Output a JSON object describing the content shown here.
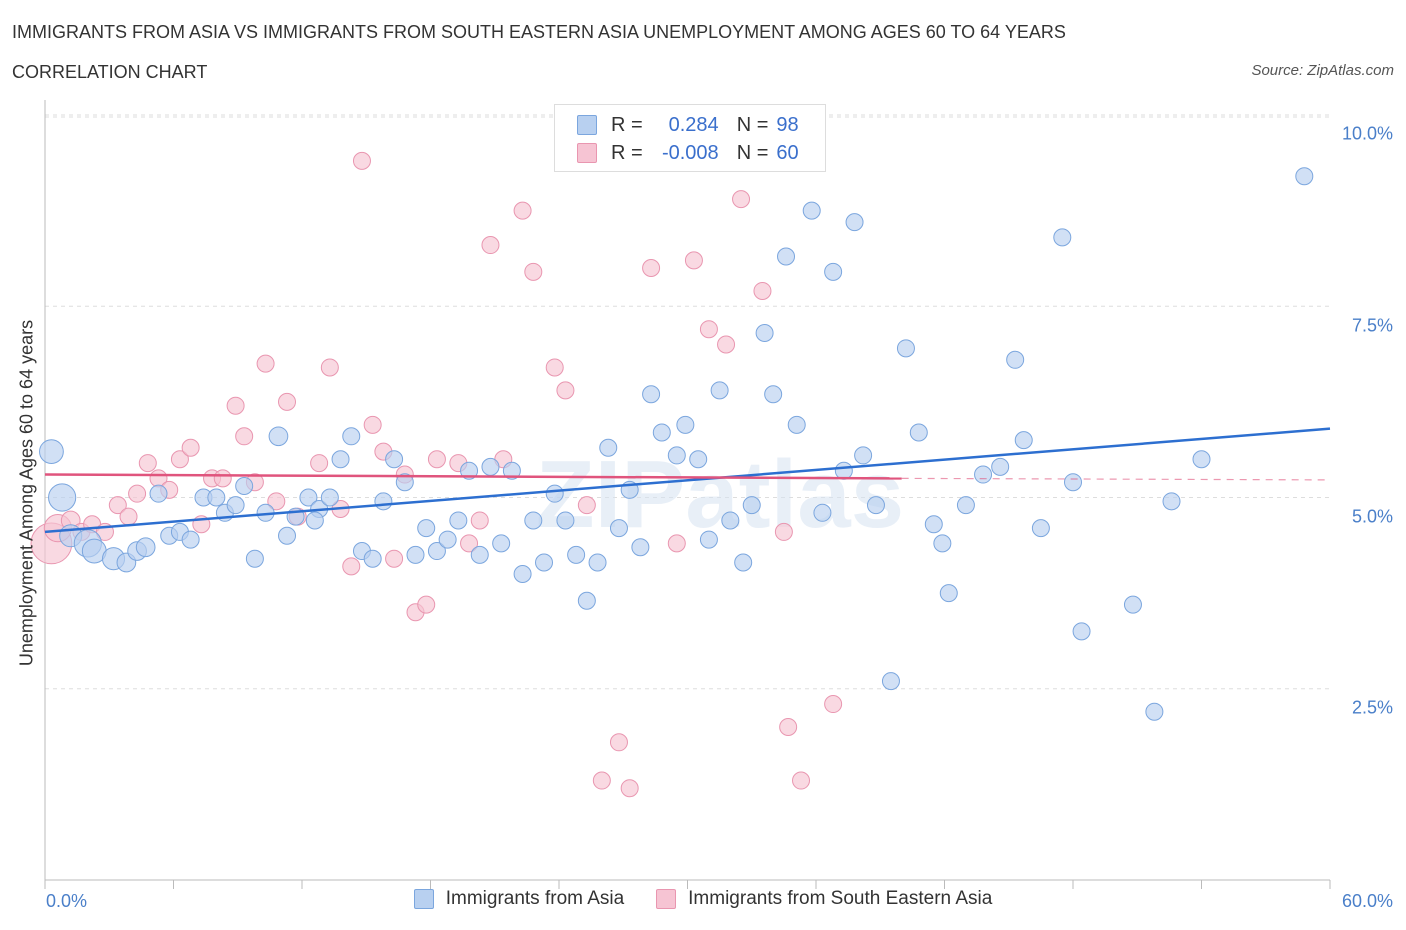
{
  "title": "IMMIGRANTS FROM ASIA VS IMMIGRANTS FROM SOUTH EASTERN ASIA UNEMPLOYMENT AMONG AGES 60 TO 64 YEARS",
  "subtitle": "CORRELATION CHART",
  "source": "Source: ZipAtlas.com",
  "watermark": "ZIPatlas",
  "colors": {
    "blue_fill": "#b8d0f0",
    "blue_stroke": "#7ba6de",
    "blue_line": "#2d6fd0",
    "pink_fill": "#f6c4d3",
    "pink_stroke": "#e996b0",
    "pink_line": "#e0547d",
    "tick_text": "#4a7fc9",
    "grid": "#dddddd"
  },
  "legend": {
    "r_label": "R =",
    "n_label": "N =",
    "blue": {
      "r": "0.284",
      "n": "98"
    },
    "pink": {
      "r": "-0.008",
      "n": "60"
    }
  },
  "chart_data": {
    "type": "scatter",
    "title": "IMMIGRANTS FROM ASIA VS IMMIGRANTS FROM SOUTH EASTERN ASIA UNEMPLOYMENT AMONG AGES 60 TO 64 YEARS",
    "xlabel": "",
    "ylabel": "Unemployment Among Ages 60 to 64 years",
    "xlim": [
      0,
      60
    ],
    "ylim": [
      0,
      10.5
    ],
    "x_tick_labels": [
      "0.0%",
      "60.0%"
    ],
    "y_ticks": [
      {
        "value": 2.5,
        "label": "2.5%"
      },
      {
        "value": 5.0,
        "label": "5.0%"
      },
      {
        "value": 7.5,
        "label": "7.5%"
      },
      {
        "value": 10.0,
        "label": "10.0%"
      }
    ],
    "series": [
      {
        "name": "Immigrants from Asia",
        "color": "blue",
        "trend": {
          "x": [
            0,
            60
          ],
          "y": [
            4.55,
            5.9
          ]
        },
        "points": [
          [
            0.3,
            5.6,
            1.4
          ],
          [
            0.8,
            5.0,
            1.6
          ],
          [
            1.2,
            4.5,
            1.3
          ],
          [
            2.0,
            4.4,
            1.6
          ],
          [
            2.3,
            4.3,
            1.4
          ],
          [
            3.2,
            4.2,
            1.3
          ],
          [
            3.8,
            4.15,
            1.1
          ],
          [
            4.3,
            4.3,
            1.1
          ],
          [
            4.7,
            4.35,
            1.1
          ],
          [
            5.3,
            5.05,
            1.0
          ],
          [
            5.8,
            4.5,
            1.0
          ],
          [
            6.3,
            4.55,
            1.0
          ],
          [
            6.8,
            4.45,
            1.0
          ],
          [
            7.4,
            5.0,
            1.0
          ],
          [
            8.0,
            5.0,
            1.0
          ],
          [
            8.4,
            4.8,
            1.0
          ],
          [
            8.9,
            4.9,
            1.0
          ],
          [
            9.3,
            5.15,
            1.0
          ],
          [
            9.8,
            4.2,
            1.0
          ],
          [
            10.3,
            4.8,
            1.0
          ],
          [
            10.9,
            5.8,
            1.1
          ],
          [
            11.3,
            4.5,
            1.0
          ],
          [
            11.7,
            4.75,
            1.0
          ],
          [
            12.3,
            5.0,
            1.0
          ],
          [
            12.8,
            4.85,
            1.0
          ],
          [
            13.3,
            5.0,
            1.0
          ],
          [
            13.8,
            5.5,
            1.0
          ],
          [
            14.3,
            5.8,
            1.0
          ],
          [
            14.8,
            4.3,
            1.0
          ],
          [
            15.3,
            4.2,
            1.0
          ],
          [
            15.8,
            4.95,
            1.0
          ],
          [
            16.3,
            5.5,
            1.0
          ],
          [
            16.8,
            5.2,
            1.0
          ],
          [
            17.3,
            4.25,
            1.0
          ],
          [
            17.8,
            4.6,
            1.0
          ],
          [
            18.3,
            4.3,
            1.0
          ],
          [
            18.8,
            4.45,
            1.0
          ],
          [
            19.3,
            4.7,
            1.0
          ],
          [
            19.8,
            5.35,
            1.0
          ],
          [
            20.3,
            4.25,
            1.0
          ],
          [
            20.8,
            5.4,
            1.0
          ],
          [
            21.3,
            4.4,
            1.0
          ],
          [
            21.8,
            5.35,
            1.0
          ],
          [
            22.3,
            4.0,
            1.0
          ],
          [
            22.8,
            4.7,
            1.0
          ],
          [
            23.3,
            4.15,
            1.0
          ],
          [
            23.8,
            5.05,
            1.0
          ],
          [
            24.3,
            4.7,
            1.0
          ],
          [
            24.8,
            4.25,
            1.0
          ],
          [
            25.3,
            3.65,
            1.0
          ],
          [
            25.8,
            4.15,
            1.0
          ],
          [
            26.3,
            5.65,
            1.0
          ],
          [
            26.8,
            4.6,
            1.0
          ],
          [
            27.3,
            5.1,
            1.0
          ],
          [
            27.8,
            4.35,
            1.0
          ],
          [
            28.3,
            6.35,
            1.0
          ],
          [
            28.8,
            5.85,
            1.0
          ],
          [
            29.5,
            5.55,
            1.0
          ],
          [
            29.9,
            5.95,
            1.0
          ],
          [
            30.5,
            5.5,
            1.0
          ],
          [
            31.0,
            4.45,
            1.0
          ],
          [
            31.5,
            6.4,
            1.0
          ],
          [
            32.0,
            4.7,
            1.0
          ],
          [
            32.6,
            4.15,
            1.0
          ],
          [
            33.0,
            4.9,
            1.0
          ],
          [
            33.6,
            7.15,
            1.0
          ],
          [
            34.0,
            6.35,
            1.0
          ],
          [
            34.6,
            8.15,
            1.0
          ],
          [
            35.1,
            5.95,
            1.0
          ],
          [
            35.8,
            8.75,
            1.0
          ],
          [
            36.3,
            4.8,
            1.0
          ],
          [
            36.8,
            7.95,
            1.0
          ],
          [
            37.3,
            5.35,
            1.0
          ],
          [
            37.8,
            8.6,
            1.0
          ],
          [
            38.2,
            5.55,
            1.0
          ],
          [
            38.8,
            4.9,
            1.0
          ],
          [
            39.5,
            2.6,
            1.0
          ],
          [
            40.2,
            6.95,
            1.0
          ],
          [
            40.8,
            5.85,
            1.0
          ],
          [
            41.5,
            4.65,
            1.0
          ],
          [
            41.9,
            4.4,
            1.0
          ],
          [
            42.2,
            3.75,
            1.0
          ],
          [
            43.0,
            4.9,
            1.0
          ],
          [
            43.8,
            5.3,
            1.0
          ],
          [
            44.6,
            5.4,
            1.0
          ],
          [
            45.3,
            6.8,
            1.0
          ],
          [
            45.7,
            5.75,
            1.0
          ],
          [
            46.5,
            4.6,
            1.0
          ],
          [
            47.5,
            8.4,
            1.0
          ],
          [
            48.0,
            5.2,
            1.0
          ],
          [
            48.4,
            3.25,
            1.0
          ],
          [
            50.8,
            3.6,
            1.0
          ],
          [
            51.8,
            2.2,
            1.0
          ],
          [
            52.6,
            4.95,
            1.0
          ],
          [
            54.0,
            5.5,
            1.0
          ],
          [
            58.8,
            9.2,
            1.0
          ],
          [
            12.6,
            4.7,
            1.0
          ]
        ]
      },
      {
        "name": "Immigrants from South Eastern Asia",
        "color": "pink",
        "trend": {
          "x": [
            0,
            40
          ],
          "y": [
            5.3,
            5.25
          ],
          "dashed_to": 60,
          "dashed_y": 5.23
        },
        "points": [
          [
            0.3,
            4.4,
            2.4
          ],
          [
            0.6,
            4.6,
            1.6
          ],
          [
            1.2,
            4.7,
            1.1
          ],
          [
            1.7,
            4.55,
            1.0
          ],
          [
            2.2,
            4.65,
            1.0
          ],
          [
            2.8,
            4.55,
            1.0
          ],
          [
            3.4,
            4.9,
            1.0
          ],
          [
            3.9,
            4.75,
            1.0
          ],
          [
            4.3,
            5.05,
            1.0
          ],
          [
            4.8,
            5.45,
            1.0
          ],
          [
            5.3,
            5.25,
            1.0
          ],
          [
            5.8,
            5.1,
            1.0
          ],
          [
            6.3,
            5.5,
            1.0
          ],
          [
            6.8,
            5.65,
            1.0
          ],
          [
            7.3,
            4.65,
            1.0
          ],
          [
            7.8,
            5.25,
            1.0
          ],
          [
            8.3,
            5.25,
            1.0
          ],
          [
            8.9,
            6.2,
            1.0
          ],
          [
            9.3,
            5.8,
            1.0
          ],
          [
            9.8,
            5.2,
            1.0
          ],
          [
            10.3,
            6.75,
            1.0
          ],
          [
            10.8,
            4.95,
            1.0
          ],
          [
            11.3,
            6.25,
            1.0
          ],
          [
            11.8,
            4.75,
            1.0
          ],
          [
            12.8,
            5.45,
            1.0
          ],
          [
            13.3,
            6.7,
            1.0
          ],
          [
            13.8,
            4.85,
            1.0
          ],
          [
            14.3,
            4.1,
            1.0
          ],
          [
            14.8,
            9.4,
            1.0
          ],
          [
            15.3,
            5.95,
            1.0
          ],
          [
            15.8,
            5.6,
            1.0
          ],
          [
            16.3,
            4.2,
            1.0
          ],
          [
            16.8,
            5.3,
            1.0
          ],
          [
            17.3,
            3.5,
            1.0
          ],
          [
            17.8,
            3.6,
            1.0
          ],
          [
            18.3,
            5.5,
            1.0
          ],
          [
            19.3,
            5.45,
            1.0
          ],
          [
            19.8,
            4.4,
            1.0
          ],
          [
            20.3,
            4.7,
            1.0
          ],
          [
            20.8,
            8.3,
            1.0
          ],
          [
            21.4,
            5.5,
            1.0
          ],
          [
            22.3,
            8.75,
            1.0
          ],
          [
            22.8,
            7.95,
            1.0
          ],
          [
            23.8,
            6.7,
            1.0
          ],
          [
            24.3,
            6.4,
            1.0
          ],
          [
            25.3,
            4.9,
            1.0
          ],
          [
            26.0,
            1.3,
            1.0
          ],
          [
            26.8,
            1.8,
            1.0
          ],
          [
            27.3,
            1.2,
            1.0
          ],
          [
            28.3,
            8.0,
            1.0
          ],
          [
            29.5,
            4.4,
            1.0
          ],
          [
            30.3,
            8.1,
            1.0
          ],
          [
            31.0,
            7.2,
            1.0
          ],
          [
            31.8,
            7.0,
            1.0
          ],
          [
            32.5,
            8.9,
            1.0
          ],
          [
            33.5,
            7.7,
            1.0
          ],
          [
            34.5,
            4.55,
            1.0
          ],
          [
            34.7,
            2.0,
            1.0
          ],
          [
            35.3,
            1.3,
            1.0
          ],
          [
            36.8,
            2.3,
            1.0
          ]
        ]
      }
    ]
  }
}
